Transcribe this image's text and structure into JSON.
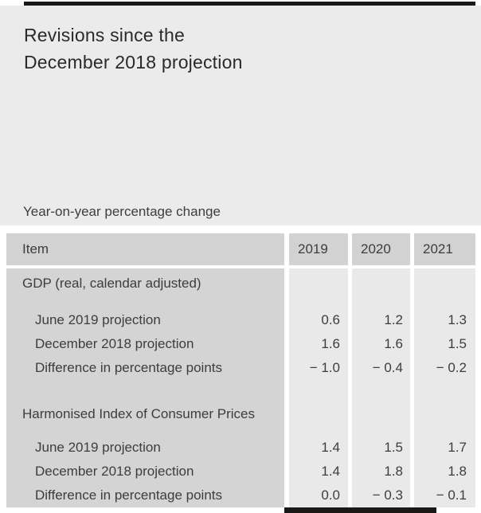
{
  "title": {
    "line1": "Revisions since the",
    "line2": "December 2018 projection"
  },
  "subtitle": "Year-on-year percentage change",
  "table": {
    "header": {
      "item": "Item",
      "years": [
        "2019",
        "2020",
        "2021"
      ]
    },
    "sections": [
      {
        "name": "GDP (real, calendar adjusted)",
        "rows": [
          {
            "label": "June 2019 projection",
            "values": [
              "0.6",
              "1.2",
              "1.3"
            ]
          },
          {
            "label": "December 2018 projection",
            "values": [
              "1.6",
              "1.6",
              "1.5"
            ]
          },
          {
            "label": "Difference in percentage points",
            "values": [
              "− 1.0",
              "− 0.4",
              "− 0.2"
            ]
          }
        ]
      },
      {
        "name": "Harmonised Index of Consumer Prices",
        "rows": [
          {
            "label": "June 2019 projection",
            "values": [
              "1.4",
              "1.5",
              "1.7"
            ]
          },
          {
            "label": "December 2018 projection",
            "values": [
              "1.4",
              "1.8",
              "1.8"
            ]
          },
          {
            "label": "Difference in percentage points",
            "values": [
              "0.0",
              "− 0.3",
              "− 0.1"
            ]
          }
        ]
      }
    ]
  },
  "colors": {
    "page_background": "#ffffff",
    "header_block": "#ebebeb",
    "header_row_cell": "#d3d2d2",
    "label_column": "#d5d4d4",
    "value_column": "#eae9e9",
    "rule_black": "#1a1918",
    "text": "#3d3d3c",
    "title_text": "#2b2a28"
  }
}
